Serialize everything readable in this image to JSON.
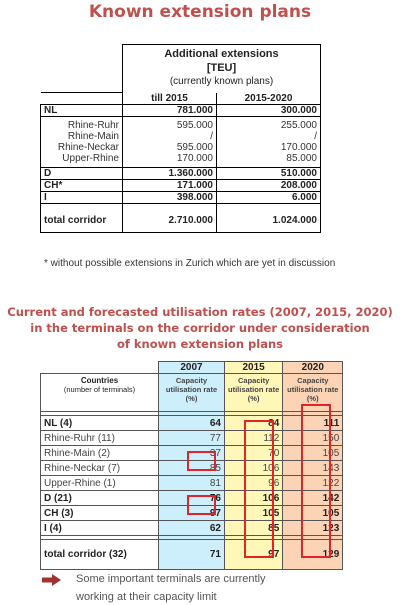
{
  "title1": "Known extension plans",
  "table1": {
    "header_title": "Additional extensions",
    "header_unit": "[TEU]",
    "header_note": "(currently known plans)",
    "col1": "till 2015",
    "col2": "2015-2020",
    "rows": [
      {
        "label": "NL",
        "v1": "781.000",
        "v2": "300.000"
      },
      {
        "label": "Rhine-Ruhr",
        "v1": "595.000",
        "v2": "255.000"
      },
      {
        "label": "Rhine-Main",
        "v1": "/",
        "v2": "/"
      },
      {
        "label": "Rhine-Neckar",
        "v1": "595.000",
        "v2": "170.000"
      },
      {
        "label": "Upper-Rhine",
        "v1": "170.000",
        "v2": "85.000"
      },
      {
        "label": "D",
        "v1": "1.360.000",
        "v2": "510.000"
      },
      {
        "label": "CH*",
        "v1": "171.000",
        "v2": "208.000"
      },
      {
        "label": "I",
        "v1": "398.000",
        "v2": "6.000"
      },
      {
        "label": "total corridor",
        "v1": "2.710.000",
        "v2": "1.024.000"
      }
    ]
  },
  "footnote": "* without possible extensions in Zurich which are yet in discussion",
  "title2": {
    "line1": "Current and forecasted utilisation rates (2007, 2015, 2020)",
    "line2": "in the terminals on the corridor under consideration",
    "line3": "of known extension plans"
  },
  "table2": {
    "years": [
      "2007",
      "2015",
      "2020"
    ],
    "countries_label": "Countries",
    "countries_note": "(number of terminals)",
    "cap_line1": "Capacity",
    "cap_line2": "utilisation rate",
    "cap_line3": "(%)",
    "rows": [
      {
        "label": "NL (4)",
        "v": [
          "64",
          "84",
          "111"
        ]
      },
      {
        "label": "Rhine-Ruhr (11)",
        "v": [
          "77",
          "112",
          "150"
        ]
      },
      {
        "label": "Rhine-Main (2)",
        "v": [
          "37",
          "70",
          "105"
        ]
      },
      {
        "label": "Rhine-Neckar (7)",
        "v": [
          "85",
          "106",
          "143"
        ]
      },
      {
        "label": "Upper-Rhine (1)",
        "v": [
          "81",
          "96",
          "122"
        ]
      },
      {
        "label": "D (21)",
        "v": [
          "76",
          "106",
          "142"
        ]
      },
      {
        "label": "CH (3)",
        "v": [
          "97",
          "105",
          "105"
        ]
      },
      {
        "label": "I (4)",
        "v": [
          "62",
          "85",
          "123"
        ]
      },
      {
        "label": "total corridor (32)",
        "v": [
          "71",
          "97",
          "129"
        ]
      }
    ]
  },
  "highlight_color": "#e0242a",
  "title_color": "#c0504d",
  "note_icon": "right-arrow-icon",
  "note_line1": "Some important terminals are currently",
  "note_line2": "working at their capacity limit"
}
